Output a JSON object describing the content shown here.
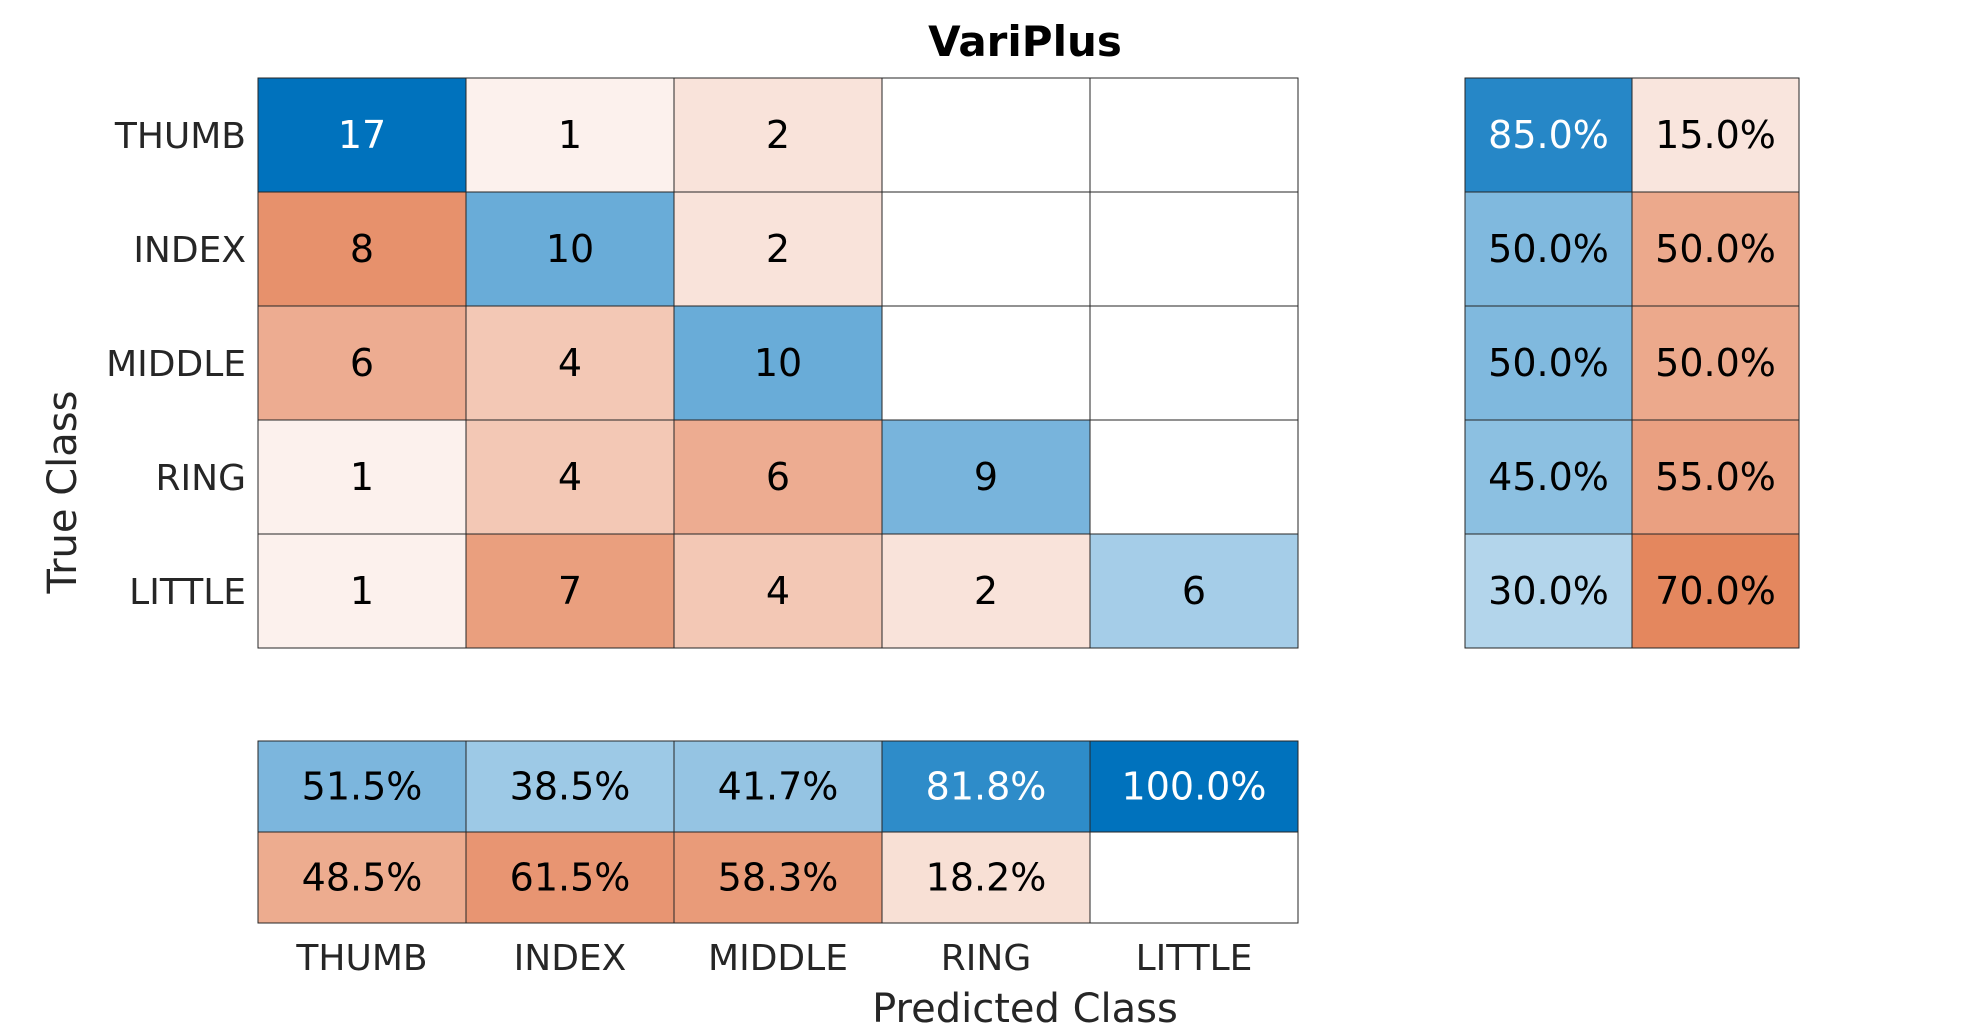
{
  "chart_data": {
    "type": "heatmap",
    "title": "VariPlus",
    "xlabel": "Predicted Class",
    "ylabel": "True Class",
    "classes": [
      "THUMB",
      "INDEX",
      "MIDDLE",
      "RING",
      "LITTLE"
    ],
    "matrix": [
      [
        17,
        1,
        2,
        0,
        0
      ],
      [
        8,
        10,
        2,
        0,
        0
      ],
      [
        6,
        4,
        10,
        0,
        0
      ],
      [
        1,
        4,
        6,
        9,
        0
      ],
      [
        1,
        7,
        4,
        2,
        6
      ]
    ],
    "row_summary": {
      "correct": [
        "85.0%",
        "50.0%",
        "50.0%",
        "45.0%",
        "30.0%"
      ],
      "incorrect": [
        "15.0%",
        "50.0%",
        "50.0%",
        "55.0%",
        "70.0%"
      ]
    },
    "column_summary": {
      "correct": [
        "51.5%",
        "38.5%",
        "41.7%",
        "81.8%",
        "100.0%"
      ],
      "incorrect": [
        "48.5%",
        "61.5%",
        "58.3%",
        "18.2%",
        ""
      ]
    },
    "colors": {
      "correct": "#0072bd",
      "incorrect": "#d95319",
      "grid_line": "#262626",
      "light_text": "#ffffff",
      "dark_text": "#000000"
    }
  }
}
